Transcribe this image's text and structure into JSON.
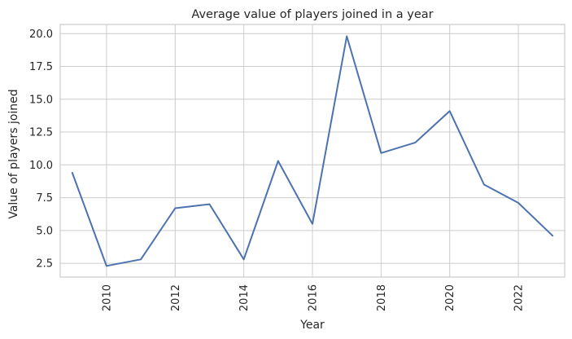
{
  "chart_data": {
    "type": "line",
    "title": "Average value of players joined in a year",
    "xlabel": "Year",
    "ylabel": "Value of players joined",
    "xlim": [
      2008.65,
      2023.35
    ],
    "ylim": [
      1.45,
      20.7
    ],
    "grid": true,
    "xticks": [
      2010,
      2012,
      2014,
      2016,
      2018,
      2020,
      2022
    ],
    "yticks": [
      2.5,
      5.0,
      7.5,
      10.0,
      12.5,
      15.0,
      17.5,
      20.0
    ],
    "ytick_labels": [
      "2.5",
      "5.0",
      "7.5",
      "10.0",
      "12.5",
      "15.0",
      "17.5",
      "20.0"
    ],
    "xtick_labels": [
      "2010",
      "2012",
      "2014",
      "2016",
      "2018",
      "2020",
      "2022"
    ],
    "series": [
      {
        "x": [
          2009,
          2010,
          2011,
          2012,
          2013,
          2014,
          2015,
          2016,
          2017,
          2018,
          2019,
          2020,
          2021,
          2022,
          2023
        ],
        "values": [
          9.4,
          2.3,
          2.8,
          6.7,
          7.0,
          2.8,
          10.3,
          5.5,
          19.8,
          10.9,
          11.7,
          14.1,
          8.5,
          7.1,
          4.6
        ],
        "color": "#4c72b0"
      }
    ]
  }
}
